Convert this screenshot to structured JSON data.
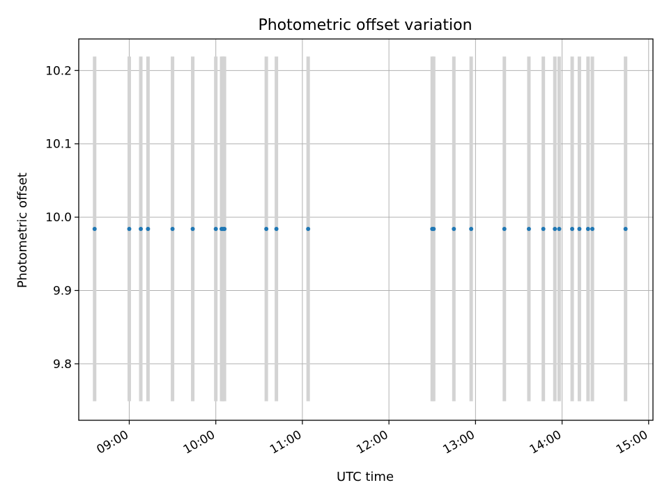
{
  "chart_data": {
    "type": "scatter",
    "title": "Photometric offset variation",
    "xlabel": "UTC time",
    "ylabel": "Photometric offset",
    "xlim": [
      "08:25",
      "15:03"
    ],
    "ylim": [
      9.723,
      10.243
    ],
    "grid": true,
    "x_ticks": [
      "09:00",
      "10:00",
      "11:00",
      "12:00",
      "13:00",
      "14:00",
      "15:00"
    ],
    "y_ticks": [
      "9.8",
      "9.9",
      "10.0",
      "10.1",
      "10.2"
    ],
    "points": [
      {
        "x": "08:36",
        "y": 9.984,
        "err": 0.235
      },
      {
        "x": "09:00",
        "y": 9.984,
        "err": 0.235
      },
      {
        "x": "09:08",
        "y": 9.984,
        "err": 0.235
      },
      {
        "x": "09:13",
        "y": 9.984,
        "err": 0.235
      },
      {
        "x": "09:30",
        "y": 9.984,
        "err": 0.235
      },
      {
        "x": "09:44",
        "y": 9.984,
        "err": 0.235
      },
      {
        "x": "10:00",
        "y": 9.984,
        "err": 0.235
      },
      {
        "x": "10:04",
        "y": 9.984,
        "err": 0.235
      },
      {
        "x": "10:05",
        "y": 9.984,
        "err": 0.235
      },
      {
        "x": "10:06",
        "y": 9.984,
        "err": 0.235
      },
      {
        "x": "10:35",
        "y": 9.984,
        "err": 0.235
      },
      {
        "x": "10:42",
        "y": 9.984,
        "err": 0.235
      },
      {
        "x": "11:04",
        "y": 9.984,
        "err": 0.235
      },
      {
        "x": "12:30",
        "y": 9.984,
        "err": 0.235
      },
      {
        "x": "12:31",
        "y": 9.984,
        "err": 0.235
      },
      {
        "x": "12:45",
        "y": 9.984,
        "err": 0.235
      },
      {
        "x": "12:57",
        "y": 9.984,
        "err": 0.235
      },
      {
        "x": "13:20",
        "y": 9.984,
        "err": 0.235
      },
      {
        "x": "13:37",
        "y": 9.984,
        "err": 0.235
      },
      {
        "x": "13:47",
        "y": 9.984,
        "err": 0.235
      },
      {
        "x": "13:55",
        "y": 9.984,
        "err": 0.235
      },
      {
        "x": "13:58",
        "y": 9.984,
        "err": 0.235
      },
      {
        "x": "14:07",
        "y": 9.984,
        "err": 0.235
      },
      {
        "x": "14:12",
        "y": 9.984,
        "err": 0.235
      },
      {
        "x": "14:18",
        "y": 9.984,
        "err": 0.235
      },
      {
        "x": "14:21",
        "y": 9.984,
        "err": 0.235
      },
      {
        "x": "14:44",
        "y": 9.984,
        "err": 0.235
      }
    ],
    "colors": {
      "point": "#1f77b4",
      "errorbar": "#d3d3d3",
      "grid": "#b0b0b0",
      "axes": "#000000"
    }
  }
}
